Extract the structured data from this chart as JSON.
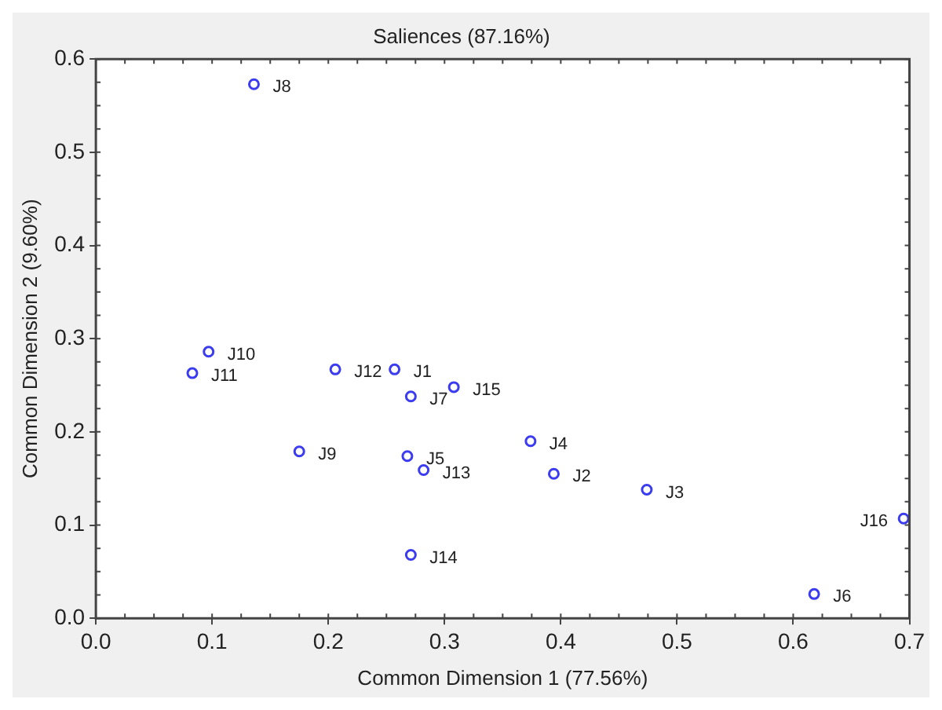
{
  "chart_data": {
    "type": "scatter",
    "title": "Saliences (87.16%)",
    "xlabel": "Common Dimension 1 (77.56%)",
    "ylabel": "Common Dimension 2 (9.60%)",
    "x": [
      0.257,
      0.394,
      0.474,
      0.374,
      0.268,
      0.618,
      0.271,
      0.136,
      0.175,
      0.097,
      0.083,
      0.206,
      0.282,
      0.271,
      0.308,
      0.695
    ],
    "values": [
      0.267,
      0.155,
      0.138,
      0.19,
      0.174,
      0.026,
      0.238,
      0.573,
      0.179,
      0.286,
      0.263,
      0.267,
      0.159,
      0.068,
      0.248,
      0.107
    ],
    "value_labels": [
      "J1",
      "J2",
      "J3",
      "J4",
      "J5",
      "J6",
      "J7",
      "J8",
      "J9",
      "J10",
      "J11",
      "J12",
      "J13",
      "J14",
      "J15",
      "J16"
    ],
    "color": "#3b3bf0",
    "marker": "circle",
    "grid": false,
    "legend": false,
    "xlim": [
      0,
      0.7
    ],
    "xticks": [
      {
        "value": 0,
        "label": "0.0"
      },
      0.1,
      0.2,
      0.3,
      0.4,
      0.5,
      0.6,
      0.7
    ],
    "ylim": [
      0,
      0.6
    ],
    "yticks": [
      {
        "value": 0,
        "label": "0.0"
      },
      0.1,
      0.2,
      0.3,
      0.4,
      0.5,
      0.6
    ]
  }
}
